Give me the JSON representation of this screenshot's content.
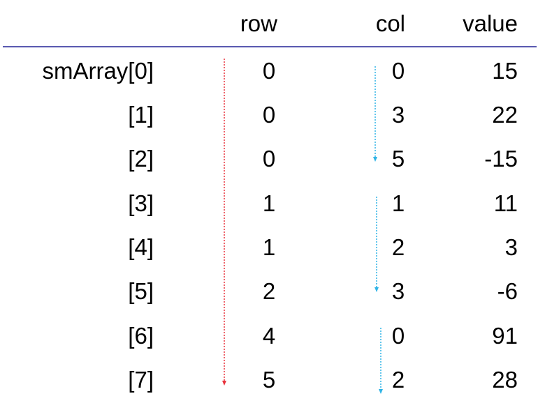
{
  "headers": {
    "row": "row",
    "col": "col",
    "value": "value"
  },
  "rows": [
    {
      "label": "smArray[0]",
      "row": "0",
      "col": "0",
      "value": "15"
    },
    {
      "label": "[1]",
      "row": "0",
      "col": "3",
      "value": "22"
    },
    {
      "label": "[2]",
      "row": "0",
      "col": "5",
      "value": "-15"
    },
    {
      "label": "[3]",
      "row": "1",
      "col": "1",
      "value": "11"
    },
    {
      "label": "[4]",
      "row": "1",
      "col": "2",
      "value": "3"
    },
    {
      "label": "[5]",
      "row": "2",
      "col": "3",
      "value": "-6"
    },
    {
      "label": "[6]",
      "row": "4",
      "col": "0",
      "value": "91"
    },
    {
      "label": "[7]",
      "row": "5",
      "col": "2",
      "value": "28"
    }
  ],
  "colors": {
    "rule": "#5a5ab0",
    "row_arrow": "#e8323c",
    "col_arrow": "#2fb4e6",
    "text": "#000000"
  }
}
